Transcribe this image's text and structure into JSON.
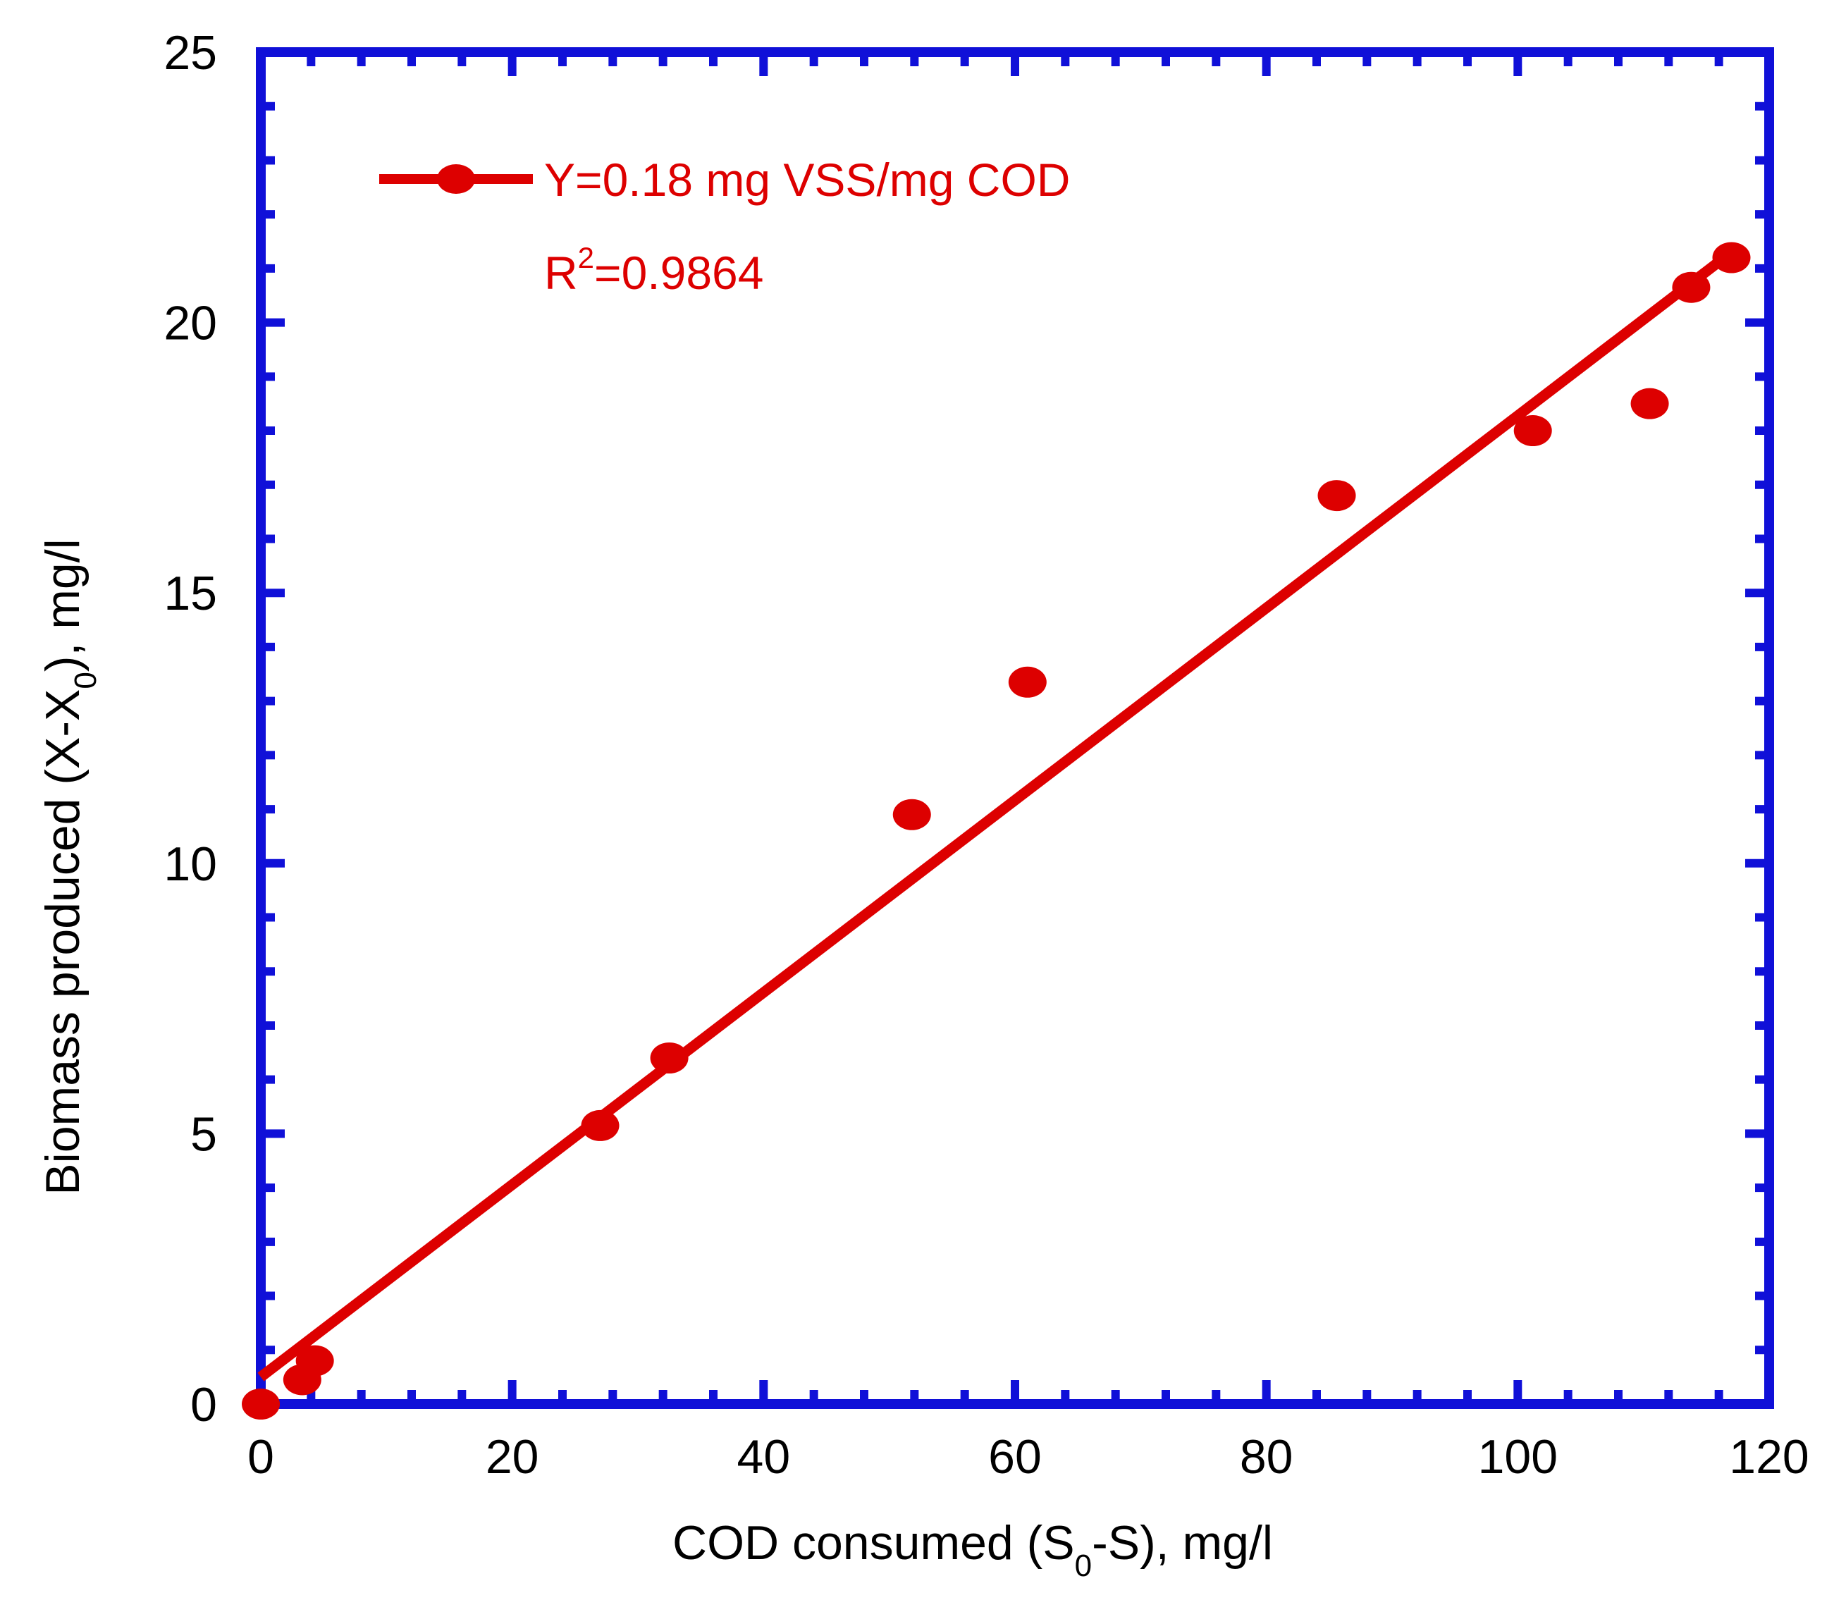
{
  "chart_data": {
    "type": "scatter",
    "title": "",
    "xlabel": {
      "prefix": "COD consumed (S",
      "sub": "0",
      "suffix": "-S), mg/l"
    },
    "ylabel": {
      "prefix": "Biomass produced (X-X",
      "sub": "0",
      "suffix": "), mg/l"
    },
    "xlim": [
      0,
      120
    ],
    "ylim": [
      0,
      25
    ],
    "xticks": [
      0,
      20,
      40,
      60,
      80,
      100,
      120
    ],
    "yticks": [
      0,
      5,
      10,
      15,
      20,
      25
    ],
    "x_minor_step": 4,
    "y_minor_step": 1,
    "grid": false,
    "legend_position": "top-left",
    "colors": {
      "frame": "#1010D8",
      "series": "#DD0000",
      "text": "#000000"
    },
    "series": [
      {
        "name": "Y=0.18 mg VSS/mg COD",
        "marker": "circle",
        "points": [
          {
            "x": 0,
            "y": 0
          },
          {
            "x": 3.3,
            "y": 0.45
          },
          {
            "x": 4.3,
            "y": 0.8
          },
          {
            "x": 27,
            "y": 5.15
          },
          {
            "x": 32.5,
            "y": 6.4
          },
          {
            "x": 51.8,
            "y": 10.9
          },
          {
            "x": 61,
            "y": 13.35
          },
          {
            "x": 85.6,
            "y": 16.8
          },
          {
            "x": 101.2,
            "y": 18
          },
          {
            "x": 110.5,
            "y": 18.5
          },
          {
            "x": 113.8,
            "y": 20.65
          },
          {
            "x": 117,
            "y": 21.2
          }
        ]
      }
    ],
    "fit_line": {
      "x": [
        0,
        117
      ],
      "y": [
        0.5,
        21.3
      ]
    },
    "annotations": {
      "equation": "Y=0.18 mg VSS/mg COD",
      "r2_prefix": "R",
      "r2_sup": "2",
      "r2_value": "=0.9864"
    }
  }
}
